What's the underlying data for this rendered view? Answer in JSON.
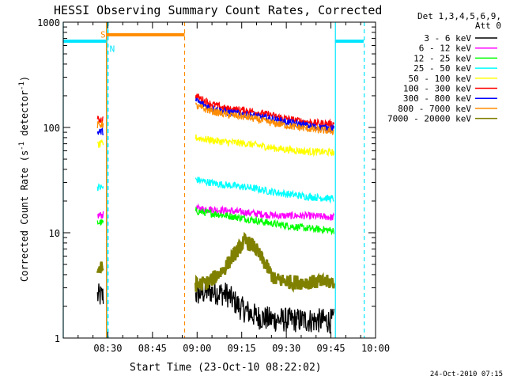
{
  "chart_data": {
    "type": "line",
    "title": "HESSI Observing Summary Count Rates, Corrected",
    "xlabel": "Start Time (23-Oct-10 08:22:02)",
    "ylabel": "Corrected Count Rate (s⁻¹ detector⁻¹)",
    "ylabel_main": "Corrected Count Rate (s",
    "ylabel_sup1": "-1",
    "ylabel_mid": " detector",
    "ylabel_sup2": "-1",
    "ylabel_end": ")",
    "yscale": "log",
    "ylim": [
      1,
      1000
    ],
    "xlim_minutes": [
      -7,
      98
    ],
    "x_ticks": [
      {
        "minute": 8,
        "label": "08:30"
      },
      {
        "minute": 23,
        "label": "08:45"
      },
      {
        "minute": 38,
        "label": "09:00"
      },
      {
        "minute": 53,
        "label": "09:15"
      },
      {
        "minute": 68,
        "label": "09:30"
      },
      {
        "minute": 83,
        "label": "09:45"
      },
      {
        "minute": 98,
        "label": "10:00"
      }
    ],
    "y_ticks": [
      {
        "value": 1,
        "label": "1"
      },
      {
        "value": 10,
        "label": "10"
      },
      {
        "value": 100,
        "label": "100"
      },
      {
        "value": 1000,
        "label": "1000"
      }
    ],
    "legend_header": [
      "Det 1,3,4,5,6,9,",
      "Att 0"
    ],
    "footer_timestamp": "24-Oct-2010 07:15",
    "series": [
      {
        "name": "3 - 6 keV",
        "color": "#000000",
        "segments": [
          [
            [
              4.5,
              2.5
            ],
            [
              6.5,
              2.5
            ]
          ],
          [
            [
              37.5,
              2.6
            ],
            [
              42,
              2.8
            ],
            [
              48,
              2.6
            ],
            [
              53,
              1.9
            ],
            [
              58,
              1.6
            ],
            [
              63,
              1.5
            ],
            [
              84,
              1.45
            ]
          ]
        ]
      },
      {
        "name": "6 - 12 keV",
        "color": "#ff00ff",
        "segments": [
          [
            [
              4.5,
              14.5
            ],
            [
              6.5,
              14.8
            ]
          ],
          [
            [
              37.5,
              17
            ],
            [
              45,
              16.5
            ],
            [
              55,
              15.5
            ],
            [
              65,
              14.5
            ],
            [
              75,
              14.5
            ],
            [
              84,
              14
            ]
          ]
        ]
      },
      {
        "name": "12 - 25 keV",
        "color": "#00ff00",
        "segments": [
          [
            [
              4.5,
              12.5
            ],
            [
              6.5,
              12.5
            ]
          ],
          [
            [
              37.5,
              16
            ],
            [
              45,
              15
            ],
            [
              55,
              13.5
            ],
            [
              65,
              12
            ],
            [
              75,
              11
            ],
            [
              84,
              10.5
            ]
          ]
        ]
      },
      {
        "name": "25 - 50 keV",
        "color": "#00ffff",
        "segments": [
          [
            [
              4.5,
              27
            ],
            [
              6.5,
              27
            ]
          ],
          [
            [
              37.5,
              32
            ],
            [
              45,
              29
            ],
            [
              55,
              27
            ],
            [
              65,
              24
            ],
            [
              75,
              22
            ],
            [
              84,
              21
            ]
          ]
        ]
      },
      {
        "name": "50 - 100 keV",
        "color": "#ffff00",
        "segments": [
          [
            [
              4.5,
              68
            ],
            [
              6.5,
              70
            ]
          ],
          [
            [
              37.5,
              80
            ],
            [
              45,
              74
            ],
            [
              55,
              70
            ],
            [
              65,
              63
            ],
            [
              75,
              59
            ],
            [
              84,
              58
            ]
          ]
        ]
      },
      {
        "name": "100 - 300 keV",
        "color": "#ff0000",
        "segments": [
          [
            [
              4.5,
              118
            ],
            [
              6.5,
              120
            ]
          ],
          [
            [
              37.5,
              200
            ],
            [
              42,
              170
            ],
            [
              48,
              150
            ],
            [
              55,
              145
            ],
            [
              62,
              132
            ],
            [
              70,
              118
            ],
            [
              78,
              110
            ],
            [
              84,
              108
            ]
          ]
        ]
      },
      {
        "name": "300 - 800 keV",
        "color": "#0000ff",
        "segments": [
          [
            [
              4.5,
              90
            ],
            [
              6.5,
              92
            ]
          ],
          [
            [
              37.5,
              180
            ],
            [
              42,
              155
            ],
            [
              48,
              140
            ],
            [
              55,
              132
            ],
            [
              62,
              122
            ],
            [
              70,
              110
            ],
            [
              78,
              101
            ],
            [
              84,
              98
            ]
          ]
        ]
      },
      {
        "name": "800 - 7000 keV",
        "color": "#ff8c00",
        "segments": [
          [
            [
              4.5,
              105
            ],
            [
              6.5,
              108
            ]
          ],
          [
            [
              37.5,
              160
            ],
            [
              42,
              145
            ],
            [
              48,
              132
            ],
            [
              55,
              125
            ],
            [
              62,
              112
            ],
            [
              70,
              102
            ],
            [
              78,
              95
            ],
            [
              84,
              92
            ]
          ]
        ]
      },
      {
        "name": "7000 - 20000 keV",
        "color": "#808000",
        "segments": [
          [
            [
              4.5,
              4.5
            ],
            [
              6.5,
              4.6
            ]
          ],
          [
            [
              37.5,
              3.2
            ],
            [
              42,
              3.4
            ],
            [
              47,
              4.5
            ],
            [
              51,
              6.5
            ],
            [
              54,
              8.3
            ],
            [
              57,
              7.5
            ],
            [
              61,
              5
            ],
            [
              64,
              3.6
            ],
            [
              70,
              3.4
            ],
            [
              84,
              3.4
            ]
          ]
        ]
      }
    ],
    "annotations": {
      "cyan_levels": [
        {
          "x": [
            -7,
            7.5
          ],
          "y": 660
        },
        {
          "x": [
            84.5,
            94
          ],
          "y": 660
        }
      ],
      "orange_level": {
        "x": [
          7.5,
          33.8
        ],
        "y": 760
      },
      "s_marker": {
        "label": "S",
        "x": 5.5,
        "y": 790
      },
      "n_marker": {
        "label": "N",
        "x": 8.6,
        "y": 620
      },
      "vlines_cyan_solid": [
        -7,
        7.7,
        84.5
      ],
      "vlines_cyan_dashed": [
        8.1,
        94.2
      ],
      "vlines_orange_solid": [
        7.5
      ],
      "vlines_orange_dashed": [
        33.8
      ]
    }
  }
}
